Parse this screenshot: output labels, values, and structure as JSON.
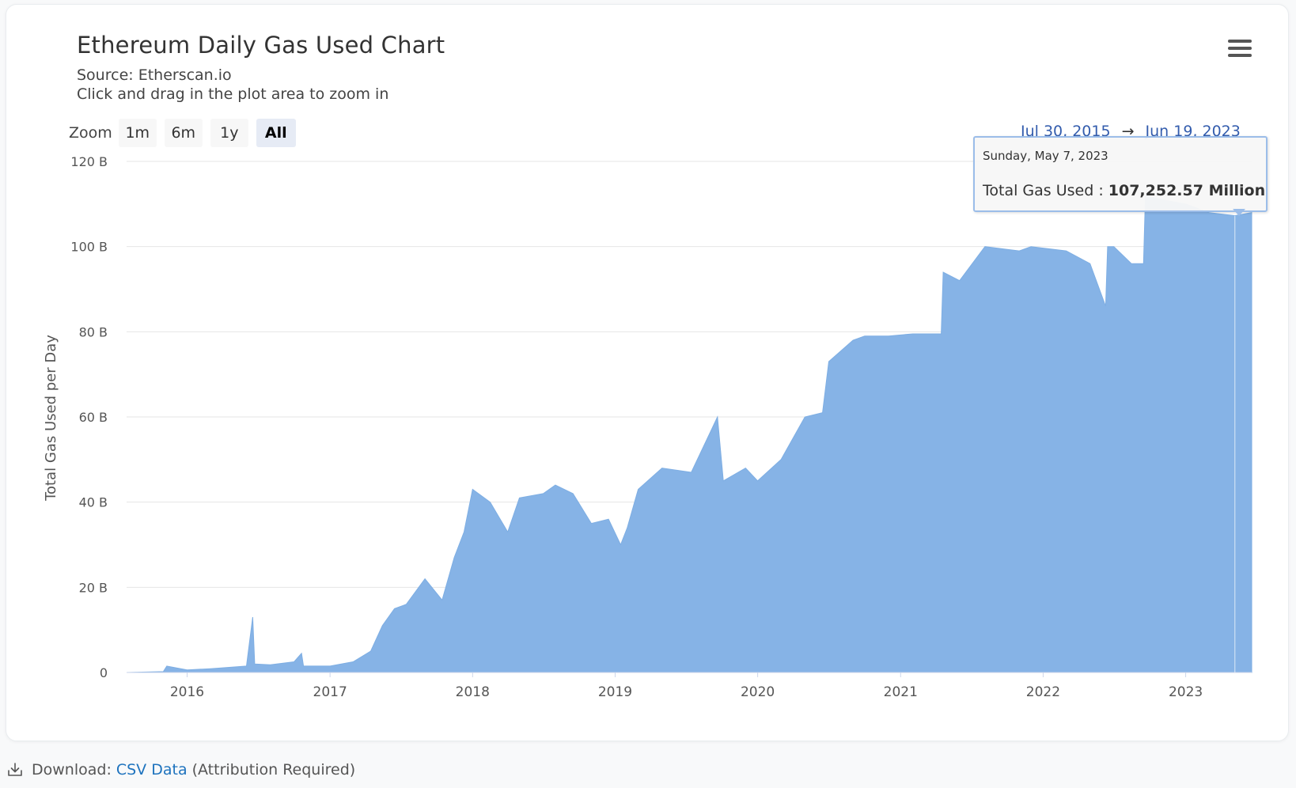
{
  "page": {
    "title": "Ethereum Daily Gas Used Chart",
    "source": "Source: Etherscan.io",
    "hint": "Click and drag in the plot area to zoom in",
    "menu_icon": "hamburger-menu-icon"
  },
  "zoom": {
    "label": "Zoom",
    "buttons": [
      {
        "label": "1m",
        "active": false
      },
      {
        "label": "6m",
        "active": false
      },
      {
        "label": "1y",
        "active": false
      },
      {
        "label": "All",
        "active": true
      }
    ]
  },
  "range": {
    "from": "Jul 30, 2015",
    "arrow": "→",
    "to": "Jun 19, 2023"
  },
  "tooltip": {
    "date": "Sunday, May 7, 2023",
    "label": "Total Gas Used : ",
    "value": "107,252.57 Million"
  },
  "download": {
    "label": "Download:",
    "link": "CSV Data",
    "note": "(Attribution Required)",
    "icon": "download-icon"
  },
  "colors": {
    "area": "#86b3e6",
    "grid": "#e6e6e6",
    "link": "#1e73be",
    "range_text": "#335cad"
  },
  "chart_data": {
    "type": "area",
    "title": "Ethereum Daily Gas Used Chart",
    "ylabel": "Total Gas Used per Day",
    "xlabel": "",
    "x_start": "2015-07-30",
    "x_end": "2023-06-19",
    "x_ticks": [
      "2016",
      "2017",
      "2018",
      "2019",
      "2020",
      "2021",
      "2022",
      "2023"
    ],
    "y_ticks": [
      "0",
      "20 B",
      "40 B",
      "60 B",
      "80 B",
      "100 B",
      "120 B"
    ],
    "ylim": [
      0,
      120
    ],
    "y_unit": "billion gas",
    "grid": true,
    "legend": false,
    "series": [
      {
        "points": [
          [
            "2015-07-30",
            0
          ],
          [
            "2015-11-01",
            0.2
          ],
          [
            "2015-11-10",
            1.5
          ],
          [
            "2016-01-01",
            0.6
          ],
          [
            "2016-03-01",
            0.9
          ],
          [
            "2016-06-01",
            1.5
          ],
          [
            "2016-06-17",
            13
          ],
          [
            "2016-06-22",
            2
          ],
          [
            "2016-08-01",
            1.8
          ],
          [
            "2016-10-01",
            2.5
          ],
          [
            "2016-10-20",
            4.5
          ],
          [
            "2016-10-25",
            1.5
          ],
          [
            "2017-01-01",
            1.5
          ],
          [
            "2017-03-01",
            2.5
          ],
          [
            "2017-04-15",
            5
          ],
          [
            "2017-05-15",
            11
          ],
          [
            "2017-06-15",
            15
          ],
          [
            "2017-07-15",
            16
          ],
          [
            "2017-09-01",
            22
          ],
          [
            "2017-10-15",
            17
          ],
          [
            "2017-11-15",
            27
          ],
          [
            "2017-12-10",
            33
          ],
          [
            "2018-01-01",
            43
          ],
          [
            "2018-02-15",
            40
          ],
          [
            "2018-04-01",
            33
          ],
          [
            "2018-05-01",
            41
          ],
          [
            "2018-07-01",
            42
          ],
          [
            "2018-08-01",
            44
          ],
          [
            "2018-09-15",
            42
          ],
          [
            "2018-11-01",
            35
          ],
          [
            "2018-12-15",
            36
          ],
          [
            "2019-01-15",
            30
          ],
          [
            "2019-02-01",
            34
          ],
          [
            "2019-03-01",
            43
          ],
          [
            "2019-05-01",
            48
          ],
          [
            "2019-07-15",
            47
          ],
          [
            "2019-09-20",
            60
          ],
          [
            "2019-10-05",
            45
          ],
          [
            "2019-12-01",
            48
          ],
          [
            "2020-01-01",
            45
          ],
          [
            "2020-03-01",
            50
          ],
          [
            "2020-05-01",
            60
          ],
          [
            "2020-06-15",
            61
          ],
          [
            "2020-07-01",
            73
          ],
          [
            "2020-09-01",
            78
          ],
          [
            "2020-10-01",
            79
          ],
          [
            "2020-12-01",
            79
          ],
          [
            "2021-02-01",
            79.5
          ],
          [
            "2021-04-15",
            79.5
          ],
          [
            "2021-04-20",
            94
          ],
          [
            "2021-06-01",
            92
          ],
          [
            "2021-08-05",
            100
          ],
          [
            "2021-11-01",
            99
          ],
          [
            "2021-12-01",
            100
          ],
          [
            "2022-03-01",
            99
          ],
          [
            "2022-05-01",
            96
          ],
          [
            "2022-06-10",
            86
          ],
          [
            "2022-06-15",
            100
          ],
          [
            "2022-07-01",
            100
          ],
          [
            "2022-08-15",
            96
          ],
          [
            "2022-09-15",
            96
          ],
          [
            "2022-09-20",
            112
          ],
          [
            "2022-11-01",
            111
          ],
          [
            "2023-01-01",
            110
          ],
          [
            "2023-03-01",
            108
          ],
          [
            "2023-05-07",
            107.25257
          ],
          [
            "2023-06-19",
            108
          ]
        ]
      }
    ]
  }
}
